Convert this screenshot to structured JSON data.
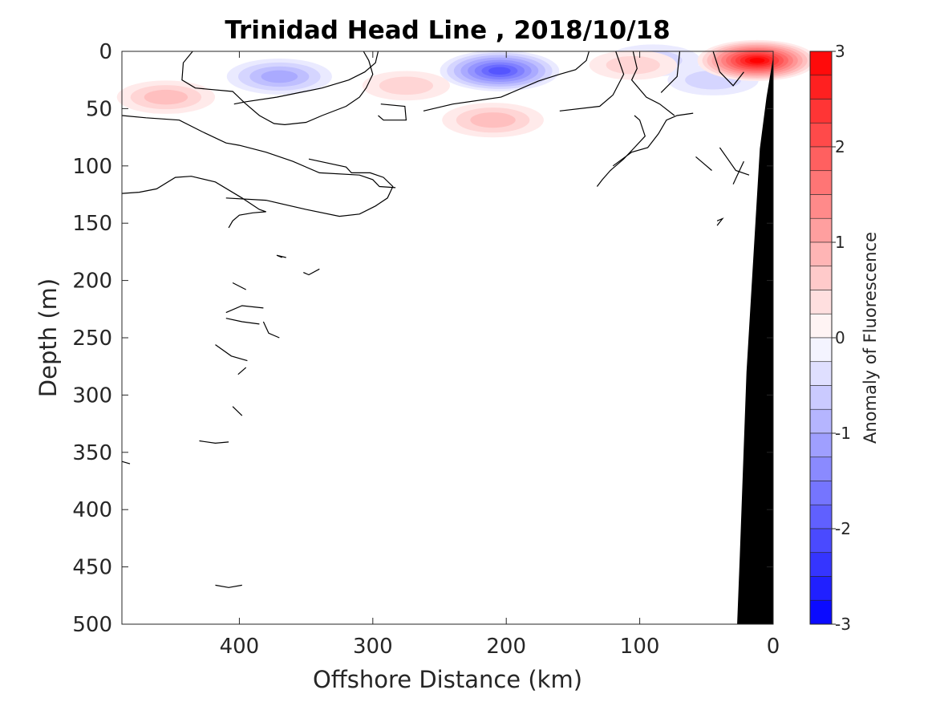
{
  "chart_data": {
    "type": "heatmap",
    "subtype": "contour-section",
    "title": "Trinidad Head Line , 2018/10/18",
    "xlabel": "Offshore Distance (km)",
    "ylabel": "Depth (m)",
    "xlim": [
      488,
      0
    ],
    "x_reversed": true,
    "ylim": [
      0,
      500
    ],
    "y_reversed": true,
    "xticks": [
      400,
      300,
      200,
      100,
      0
    ],
    "xtick_labels": [
      "400",
      "300",
      "200",
      "100",
      "0"
    ],
    "yticks": [
      0,
      50,
      100,
      150,
      200,
      250,
      300,
      350,
      400,
      450,
      500
    ],
    "ytick_labels": [
      "0",
      "50",
      "100",
      "150",
      "200",
      "250",
      "300",
      "350",
      "400",
      "450",
      "500"
    ],
    "grid": false,
    "colorbar": {
      "label": "Anomaly of Fluorescence",
      "limits": [
        -3,
        3
      ],
      "levels": 24,
      "ticks": [
        3,
        2,
        1,
        0,
        -1,
        -2,
        -3
      ],
      "tick_labels": [
        "3",
        "2",
        "1",
        "0",
        "-1",
        "-2",
        "-3"
      ],
      "colormap": "blue-white-red",
      "min_color": "#0000ff",
      "max_color": "#ff0000",
      "mid_color": "#ffffff"
    },
    "anomaly_patches": [
      {
        "x": 370,
        "depth": 22,
        "value": -0.8
      },
      {
        "x": 205,
        "depth": 17,
        "value": -2.0
      },
      {
        "x": 90,
        "depth": 8,
        "value": -0.5
      },
      {
        "x": 45,
        "depth": 25,
        "value": -0.4
      },
      {
        "x": 455,
        "depth": 40,
        "value": 0.6
      },
      {
        "x": 275,
        "depth": 30,
        "value": 0.3
      },
      {
        "x": 210,
        "depth": 60,
        "value": 0.7
      },
      {
        "x": 105,
        "depth": 12,
        "value": 0.3
      },
      {
        "x": 12,
        "depth": 8,
        "value": 3.0
      }
    ],
    "zero_contour_lines": [
      [
        [
          488,
          56
        ],
        [
          470,
          58
        ],
        [
          445,
          60
        ],
        [
          428,
          70
        ],
        [
          410,
          80
        ],
        [
          400,
          82
        ],
        [
          380,
          88
        ],
        [
          360,
          96
        ],
        [
          340,
          106
        ],
        [
          310,
          108
        ],
        [
          300,
          112
        ],
        [
          295,
          118
        ],
        [
          283,
          119
        ]
      ],
      [
        [
          488,
          124
        ],
        [
          475,
          123
        ],
        [
          462,
          120
        ],
        [
          448,
          110
        ],
        [
          436,
          109
        ],
        [
          418,
          114
        ],
        [
          398,
          128
        ],
        [
          385,
          138
        ],
        [
          380,
          140
        ]
      ],
      [
        [
          380,
          140
        ],
        [
          390,
          141
        ],
        [
          400,
          143
        ],
        [
          405,
          148
        ],
        [
          408,
          154
        ]
      ],
      [
        [
          435,
          0
        ],
        [
          442,
          10
        ],
        [
          443,
          25
        ],
        [
          433,
          32
        ],
        [
          405,
          35
        ],
        [
          396,
          45
        ],
        [
          385,
          56
        ],
        [
          374,
          63
        ],
        [
          366,
          64
        ],
        [
          350,
          62
        ],
        [
          338,
          56
        ],
        [
          320,
          48
        ],
        [
          310,
          40
        ],
        [
          305,
          32
        ],
        [
          300,
          20
        ],
        [
          303,
          8
        ],
        [
          307,
          0
        ]
      ],
      [
        [
          296,
          0
        ],
        [
          298,
          10
        ],
        [
          306,
          18
        ],
        [
          318,
          25
        ],
        [
          338,
          32
        ],
        [
          355,
          36
        ],
        [
          372,
          40
        ],
        [
          395,
          44
        ],
        [
          404,
          46
        ]
      ],
      [
        [
          294,
          46
        ],
        [
          276,
          48
        ],
        [
          275,
          60
        ],
        [
          292,
          60
        ],
        [
          296,
          56
        ]
      ],
      [
        [
          348,
          94
        ],
        [
          320,
          101
        ],
        [
          316,
          106
        ],
        [
          302,
          106
        ],
        [
          292,
          110
        ],
        [
          285,
          118
        ],
        [
          289,
          128
        ],
        [
          298,
          135
        ],
        [
          310,
          142
        ],
        [
          325,
          144
        ],
        [
          350,
          138
        ],
        [
          380,
          130
        ],
        [
          410,
          128
        ]
      ],
      [
        [
          138,
          0
        ],
        [
          140,
          8
        ],
        [
          148,
          16
        ],
        [
          160,
          20
        ],
        [
          176,
          26
        ],
        [
          204,
          40
        ],
        [
          240,
          46
        ],
        [
          262,
          52
        ]
      ],
      [
        [
          118,
          0
        ],
        [
          112,
          20
        ],
        [
          120,
          38
        ],
        [
          130,
          48
        ],
        [
          160,
          52
        ]
      ],
      [
        [
          105,
          0
        ],
        [
          102,
          15
        ],
        [
          106,
          25
        ],
        [
          95,
          40
        ],
        [
          85,
          46
        ],
        [
          74,
          56
        ]
      ],
      [
        [
          70,
          0
        ],
        [
          72,
          22
        ],
        [
          84,
          36
        ]
      ],
      [
        [
          104,
          56
        ],
        [
          100,
          60
        ],
        [
          96,
          74
        ],
        [
          104,
          84
        ],
        [
          112,
          94
        ],
        [
          122,
          104
        ],
        [
          128,
          112
        ],
        [
          132,
          118
        ]
      ],
      [
        [
          45,
          0
        ],
        [
          40,
          18
        ],
        [
          30,
          30
        ],
        [
          22,
          18
        ]
      ],
      [
        [
          60,
          54
        ],
        [
          72,
          56
        ],
        [
          80,
          60
        ],
        [
          86,
          72
        ],
        [
          94,
          84
        ],
        [
          106,
          88
        ],
        [
          120,
          100
        ]
      ],
      [
        [
          40,
          84
        ],
        [
          34,
          94
        ],
        [
          28,
          104
        ],
        [
          18,
          108
        ]
      ],
      [
        [
          58,
          92
        ],
        [
          52,
          98
        ],
        [
          46,
          104
        ]
      ],
      [
        [
          22,
          96
        ],
        [
          26,
          106
        ],
        [
          30,
          116
        ]
      ],
      [
        [
          42,
          152
        ],
        [
          38,
          146
        ],
        [
          42,
          148
        ]
      ],
      [
        [
          368,
          180
        ],
        [
          372,
          178
        ],
        [
          365,
          180
        ]
      ],
      [
        [
          340,
          190
        ],
        [
          348,
          195
        ],
        [
          352,
          193
        ]
      ],
      [
        [
          405,
          202
        ],
        [
          395,
          208
        ]
      ],
      [
        [
          410,
          228
        ],
        [
          398,
          222
        ],
        [
          382,
          224
        ]
      ],
      [
        [
          410,
          233
        ],
        [
          398,
          236
        ],
        [
          385,
          238
        ]
      ],
      [
        [
          382,
          236
        ],
        [
          378,
          246
        ],
        [
          370,
          250
        ]
      ],
      [
        [
          418,
          256
        ],
        [
          406,
          266
        ],
        [
          394,
          270
        ]
      ],
      [
        [
          395,
          276
        ],
        [
          401,
          282
        ]
      ],
      [
        [
          405,
          310
        ],
        [
          398,
          318
        ]
      ],
      [
        [
          430,
          340
        ],
        [
          418,
          342
        ],
        [
          408,
          341
        ]
      ],
      [
        [
          488,
          358
        ],
        [
          482,
          360
        ]
      ],
      [
        [
          418,
          466
        ],
        [
          408,
          468
        ],
        [
          398,
          466
        ]
      ]
    ],
    "bathymetry": {
      "color": "#000000",
      "profile": [
        [
          0,
          5
        ],
        [
          5,
          40
        ],
        [
          10,
          85
        ],
        [
          20,
          280
        ],
        [
          25,
          440
        ],
        [
          27,
          500
        ]
      ]
    }
  }
}
